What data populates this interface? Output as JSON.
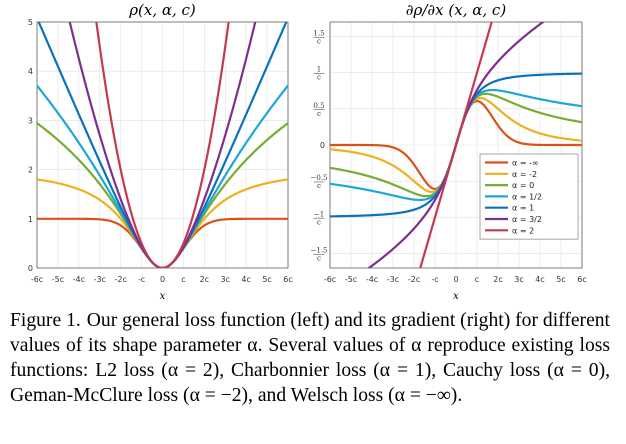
{
  "colors": [
    "#d95319",
    "#edb120",
    "#77ac30",
    "#1fa6d8",
    "#0a72bd",
    "#7e2f8e",
    "#c33a4e"
  ],
  "chart_data": [
    {
      "type": "line",
      "title": "ρ(x, α, c)",
      "xlabel": "x",
      "x_ticks": [
        "-6c",
        "-5c",
        "-4c",
        "-3c",
        "-2c",
        "-c",
        "0",
        "c",
        "2c",
        "3c",
        "4c",
        "5c",
        "6c"
      ],
      "y_ticks": [
        "0",
        "1",
        "2",
        "3",
        "4",
        "5"
      ],
      "xlim": [
        -6,
        6
      ],
      "ylim": [
        0,
        5
      ],
      "grid": true,
      "function": "loss rho(x/c, alpha)",
      "series": [
        {
          "alpha": "-inf",
          "x": [
            -6,
            -4,
            -3,
            -2,
            -1,
            0,
            1,
            2,
            3,
            4,
            6
          ],
          "y": [
            1.0,
            1.0,
            0.99,
            0.86,
            0.39,
            0,
            0.39,
            0.86,
            0.99,
            1.0,
            1.0
          ]
        },
        {
          "alpha": -2,
          "x": [
            -6,
            -4,
            -3,
            -2,
            -1,
            0,
            1,
            2,
            3,
            4,
            6
          ],
          "y": [
            1.79,
            1.6,
            1.38,
            1.0,
            0.4,
            0,
            0.4,
            1.0,
            1.38,
            1.6,
            1.79
          ]
        },
        {
          "alpha": 0,
          "x": [
            -6,
            -4,
            -3,
            -2,
            -1,
            0,
            1,
            2,
            3,
            4,
            6
          ],
          "y": [
            2.94,
            2.2,
            1.7,
            1.1,
            0.41,
            0,
            0.41,
            1.1,
            1.7,
            2.2,
            2.94
          ]
        },
        {
          "alpha": 0.5,
          "x": [
            -6,
            -4,
            -3,
            -2,
            -1,
            0,
            1,
            2,
            3,
            4,
            6
          ],
          "y": [
            3.69,
            2.6,
            1.93,
            1.2,
            0.43,
            0,
            0.43,
            1.2,
            1.93,
            2.6,
            3.69
          ]
        },
        {
          "alpha": 1,
          "x": [
            -6,
            -4,
            -3,
            -2,
            -1,
            0,
            1,
            2,
            3,
            4,
            6
          ],
          "y": [
            5.08,
            3.12,
            2.16,
            1.24,
            0.44,
            0,
            0.44,
            1.24,
            2.16,
            3.12,
            5.08
          ]
        },
        {
          "alpha": 1.5,
          "x": [
            -4,
            -3,
            -2,
            -1,
            0,
            1,
            2,
            3,
            4
          ],
          "y": [
            4.15,
            2.78,
            1.5,
            0.47,
            0,
            0.47,
            1.5,
            2.78,
            4.15
          ]
        },
        {
          "alpha": 2,
          "x": [
            -3,
            -2,
            -1,
            0,
            1,
            2,
            3
          ],
          "y": [
            4.5,
            2.0,
            0.5,
            0,
            0.5,
            2.0,
            4.5
          ]
        }
      ]
    },
    {
      "type": "line",
      "title": "∂ρ/∂x (x, α, c)",
      "xlabel": "x",
      "x_ticks": [
        "-6c",
        "-5c",
        "-4c",
        "-3c",
        "-2c",
        "-c",
        "0",
        "c",
        "2c",
        "3c",
        "4c",
        "5c",
        "6c"
      ],
      "y_ticks": [
        {
          "num": "1.5",
          "den": "c"
        },
        {
          "num": "1",
          "den": "c"
        },
        {
          "num": "0.5",
          "den": "c"
        },
        {
          "num": "0",
          "den": ""
        },
        {
          "num": "−0.5",
          "den": "c"
        },
        {
          "num": "−1",
          "den": "c"
        },
        {
          "num": "−1.5",
          "den": "c"
        }
      ],
      "xlim": [
        -6,
        6
      ],
      "ylim": [
        -1.7,
        1.7
      ],
      "grid": true,
      "function": "derivative of rho with respect to x",
      "legend": {
        "position": "right",
        "entries": [
          "α = -∞",
          "α = -2",
          "α = 0",
          "α = 1/2",
          "α = 1",
          "α = 3/2",
          "α = 2"
        ]
      },
      "series": [
        {
          "alpha": "-inf",
          "x": [
            -6,
            -3,
            -2,
            -1,
            0,
            1,
            2,
            3,
            6
          ],
          "y": [
            0,
            -0.03,
            -0.27,
            -0.61,
            0,
            0.61,
            0.27,
            0.03,
            0
          ]
        },
        {
          "alpha": -2,
          "x": [
            -6,
            -3,
            -2,
            -1,
            0,
            1,
            2,
            3,
            6
          ],
          "y": [
            -0.1,
            -0.21,
            -0.5,
            -0.64,
            0,
            0.64,
            0.5,
            0.21,
            0.1
          ]
        },
        {
          "alpha": 0,
          "x": [
            -6,
            -3,
            -2,
            -1,
            0,
            1,
            2,
            3,
            6
          ],
          "y": [
            -0.31,
            -0.5,
            -0.67,
            -0.67,
            0,
            0.67,
            0.67,
            0.5,
            0.31
          ]
        },
        {
          "alpha": 0.5,
          "x": [
            -6,
            -3,
            -2,
            -1,
            0,
            1,
            2,
            3,
            6
          ],
          "y": [
            -0.54,
            -0.68,
            -0.77,
            -0.68,
            0,
            0.68,
            0.77,
            0.68,
            0.54
          ]
        },
        {
          "alpha": 1,
          "x": [
            -6,
            -3,
            -2,
            -1,
            0,
            1,
            2,
            3,
            6
          ],
          "y": [
            -0.99,
            -0.95,
            -0.89,
            -0.71,
            0,
            0.71,
            0.89,
            0.95,
            0.99
          ]
        },
        {
          "alpha": 1.5,
          "x": [
            -4,
            -3,
            -2,
            -1,
            0,
            1,
            2,
            3,
            4
          ],
          "y": [
            -1.7,
            -1.36,
            -1.04,
            -0.74,
            0,
            0.74,
            1.04,
            1.36,
            1.7
          ]
        },
        {
          "alpha": 2,
          "x": [
            -1.7,
            -1,
            0,
            1,
            1.7
          ],
          "y": [
            -1.7,
            -1,
            0,
            1,
            1.7
          ]
        }
      ]
    }
  ],
  "caption": {
    "label": "Figure 1.",
    "text": "Our general loss function (left) and its gradient (right) for different values of its shape parameter α. Several values of α reproduce existing loss functions: L2 loss (α = 2), Charbonnier loss (α = 1), Cauchy loss (α = 0), Geman-McClure loss (α = −2), and Welsch loss (α = −∞)."
  }
}
